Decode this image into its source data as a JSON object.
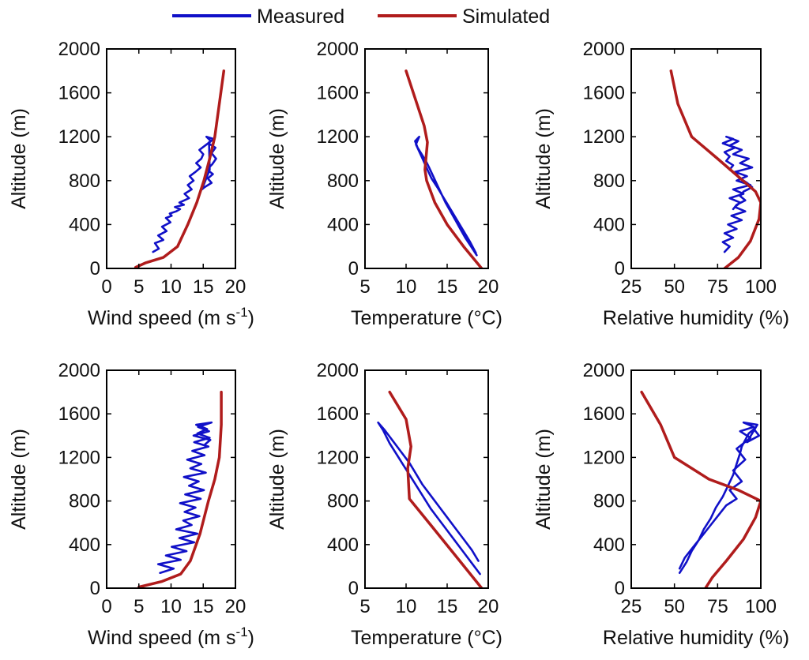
{
  "legend": [
    {
      "label": "Measured",
      "color": "#1010c8"
    },
    {
      "label": "Simulated",
      "color": "#b01c1c"
    }
  ],
  "colors": {
    "measured": "#1010c8",
    "simulated": "#b01c1c",
    "axis": "#000000"
  },
  "chart_data": [
    {
      "id": "p1",
      "type": "line",
      "xlabel": "Wind speed (m s",
      "xlabel_sup": "-1",
      "xlabel_tail": ")",
      "ylabel": "Altitude (m)",
      "xlim": [
        0,
        20
      ],
      "ylim": [
        0,
        2000
      ],
      "xticks": [
        0,
        5,
        10,
        15,
        20
      ],
      "xtick_labels": [
        "0",
        "5",
        "10",
        "15",
        "20"
      ],
      "yticks": [
        0,
        400,
        800,
        1200,
        1600,
        2000
      ],
      "ytick_labels": [
        "0",
        "400",
        "800",
        "1200",
        "1600",
        "2000"
      ],
      "series": [
        {
          "name": "Measured",
          "x": [
            7.2,
            8.1,
            7.5,
            8.8,
            8.0,
            9.3,
            8.6,
            9.9,
            9.2,
            10.1,
            9.8,
            10.8,
            11.4,
            10.6,
            12.0,
            11.3,
            12.8,
            12.1,
            13.2,
            12.6,
            13.5,
            12.9,
            13.8,
            14.6,
            13.9,
            14.7,
            15.0,
            14.4,
            15.3,
            16.2,
            15.5,
            16.6,
            15.8,
            16.9,
            16.3,
            17.0,
            16.4,
            15.6,
            16.5,
            15.7,
            16.3,
            15.2,
            14.8,
            16.0,
            15.9
          ],
          "y": [
            150,
            180,
            230,
            260,
            300,
            340,
            380,
            420,
            460,
            480,
            500,
            520,
            540,
            560,
            580,
            600,
            640,
            680,
            720,
            760,
            800,
            840,
            880,
            920,
            960,
            1000,
            1040,
            1080,
            1120,
            1160,
            1200,
            1180,
            1140,
            1100,
            1050,
            1000,
            950,
            900,
            860,
            820,
            780,
            740,
            720,
            900,
            1150
          ]
        },
        {
          "name": "Simulated",
          "x": [
            4.5,
            6.0,
            8.8,
            11.0,
            12.6,
            14.0,
            15.1,
            16.0,
            16.8,
            17.5,
            18.2
          ],
          "y": [
            10,
            50,
            100,
            200,
            400,
            600,
            800,
            1000,
            1200,
            1500,
            1800
          ]
        }
      ]
    },
    {
      "id": "p2",
      "type": "line",
      "xlabel": "Temperature (°C)",
      "ylabel": "Altitude (m)",
      "xlim": [
        5,
        20
      ],
      "ylim": [
        0,
        2000
      ],
      "xticks": [
        5,
        10,
        15,
        20
      ],
      "xtick_labels": [
        "5",
        "10",
        "15",
        "20"
      ],
      "yticks": [
        0,
        400,
        800,
        1200,
        1600,
        2000
      ],
      "ytick_labels": [
        "0",
        "400",
        "800",
        "1200",
        "1600",
        "2000"
      ],
      "series": [
        {
          "name": "Measured",
          "x": [
            18.6,
            17.9,
            17.2,
            16.6,
            16.0,
            15.4,
            14.8,
            14.3,
            13.8,
            13.3,
            12.8,
            12.4,
            11.9,
            11.4,
            11.1,
            11.6,
            11.2,
            12.0,
            12.6,
            13.1,
            13.8,
            14.6,
            15.4,
            16.2,
            17.0,
            17.8,
            18.5
          ],
          "y": [
            120,
            200,
            280,
            360,
            440,
            520,
            600,
            680,
            760,
            840,
            920,
            980,
            1040,
            1100,
            1160,
            1200,
            1130,
            1000,
            900,
            820,
            740,
            640,
            540,
            440,
            340,
            240,
            140
          ]
        },
        {
          "name": "Simulated",
          "x": [
            19.2,
            17.0,
            15.0,
            13.5,
            12.5,
            12.3,
            12.6,
            12.2,
            10.0
          ],
          "y": [
            0,
            200,
            400,
            600,
            800,
            900,
            1150,
            1300,
            1800
          ]
        }
      ]
    },
    {
      "id": "p3",
      "type": "line",
      "xlabel": "Relative humidity (%)",
      "ylabel": "Altitude (m)",
      "xlim": [
        25,
        100
      ],
      "ylim": [
        0,
        2000
      ],
      "xticks": [
        25,
        50,
        75,
        100
      ],
      "xtick_labels": [
        "25",
        "50",
        "75",
        "100"
      ],
      "yticks": [
        0,
        400,
        800,
        1200,
        1600,
        2000
      ],
      "ytick_labels": [
        "0",
        "400",
        "800",
        "1200",
        "1600",
        "2000"
      ],
      "series": [
        {
          "name": "Measured",
          "x": [
            79,
            82,
            78,
            84,
            79,
            86,
            81,
            89,
            83,
            91,
            85,
            88,
            82,
            90,
            84,
            94,
            86,
            92,
            85,
            95,
            88,
            93,
            84,
            89,
            82,
            87,
            80,
            84,
            78,
            85,
            79,
            82,
            80,
            84,
            82,
            86,
            88,
            92,
            95,
            90,
            88,
            91,
            86,
            84
          ],
          "y": [
            150,
            200,
            240,
            280,
            320,
            360,
            400,
            440,
            480,
            520,
            560,
            600,
            640,
            680,
            720,
            760,
            800,
            840,
            880,
            920,
            960,
            1000,
            1040,
            1080,
            1120,
            1160,
            1200,
            1180,
            1140,
            1100,
            1060,
            1020,
            980,
            940,
            900,
            860,
            820,
            780,
            740,
            700,
            660,
            620,
            580,
            540
          ]
        },
        {
          "name": "Simulated",
          "x": [
            79,
            87,
            94,
            99,
            100,
            97,
            75,
            60,
            52,
            48
          ],
          "y": [
            0,
            100,
            250,
            450,
            600,
            700,
            1000,
            1200,
            1500,
            1800
          ]
        }
      ]
    },
    {
      "id": "p4",
      "type": "line",
      "xlabel": "Wind speed (m s",
      "xlabel_sup": "-1",
      "xlabel_tail": ")",
      "ylabel": "Altitude (m)",
      "xlim": [
        0,
        20
      ],
      "ylim": [
        0,
        2000
      ],
      "xticks": [
        0,
        5,
        10,
        15,
        20
      ],
      "xtick_labels": [
        "0",
        "5",
        "10",
        "15",
        "20"
      ],
      "yticks": [
        0,
        400,
        800,
        1200,
        1600,
        2000
      ],
      "ytick_labels": [
        "0",
        "400",
        "800",
        "1200",
        "1600",
        "2000"
      ],
      "series": [
        {
          "name": "Measured",
          "x": [
            8.3,
            10.4,
            8.0,
            11.5,
            9.2,
            12.4,
            10.1,
            13.6,
            11.3,
            14.1,
            10.8,
            13.2,
            11.9,
            14.4,
            12.1,
            13.8,
            11.4,
            14.6,
            12.2,
            15.1,
            12.8,
            14.3,
            12.0,
            15.4,
            13.0,
            14.7,
            12.5,
            15.2,
            13.3,
            15.8,
            13.6,
            16.0,
            14.1,
            15.6,
            13.9,
            16.3,
            14.2,
            15.9,
            13.5,
            16.1,
            15.3
          ],
          "y": [
            140,
            180,
            220,
            260,
            300,
            340,
            380,
            420,
            460,
            500,
            540,
            580,
            620,
            660,
            700,
            740,
            780,
            820,
            860,
            900,
            940,
            980,
            1020,
            1060,
            1100,
            1140,
            1180,
            1220,
            1260,
            1300,
            1340,
            1380,
            1420,
            1460,
            1500,
            1520,
            1480,
            1440,
            1400,
            1360,
            1320
          ]
        },
        {
          "name": "Simulated",
          "x": [
            5.0,
            8.5,
            11.5,
            13.0,
            14.5,
            15.8,
            16.8,
            17.5,
            17.8,
            17.8
          ],
          "y": [
            10,
            60,
            130,
            250,
            500,
            800,
            1000,
            1200,
            1500,
            1800
          ]
        }
      ]
    },
    {
      "id": "p5",
      "type": "line",
      "xlabel": "Temperature (°C)",
      "ylabel": "Altitude (m)",
      "xlim": [
        5,
        20
      ],
      "ylim": [
        0,
        2000
      ],
      "xticks": [
        5,
        10,
        15,
        20
      ],
      "xtick_labels": [
        "5",
        "10",
        "15",
        "20"
      ],
      "yticks": [
        0,
        400,
        800,
        1200,
        1600,
        2000
      ],
      "ytick_labels": [
        "0",
        "400",
        "800",
        "1200",
        "1600",
        "2000"
      ],
      "series": [
        {
          "name": "Measured",
          "x": [
            19.0,
            18.0,
            17.0,
            16.0,
            15.0,
            14.0,
            13.0,
            12.0,
            11.0,
            10.0,
            9.0,
            8.0,
            7.2,
            6.6,
            7.4,
            8.4,
            9.4,
            10.4,
            11.2,
            12.0,
            13.0,
            14.0,
            15.0,
            16.0,
            17.0,
            18.0,
            18.8
          ],
          "y": [
            130,
            230,
            330,
            430,
            530,
            630,
            730,
            850,
            970,
            1090,
            1210,
            1330,
            1450,
            1520,
            1450,
            1350,
            1250,
            1150,
            1050,
            950,
            850,
            750,
            650,
            550,
            450,
            350,
            250
          ]
        },
        {
          "name": "Simulated",
          "x": [
            19.2,
            16.0,
            13.0,
            10.4,
            10.2,
            10.6,
            10.0,
            8.0
          ],
          "y": [
            0,
            300,
            580,
            820,
            1100,
            1300,
            1550,
            1800
          ]
        }
      ]
    },
    {
      "id": "p6",
      "type": "line",
      "xlabel": "Relative humidity (%)",
      "ylabel": "Altitude (m)",
      "xlim": [
        25,
        100
      ],
      "ylim": [
        0,
        2000
      ],
      "xticks": [
        25,
        50,
        75,
        100
      ],
      "xtick_labels": [
        "25",
        "50",
        "75",
        "100"
      ],
      "yticks": [
        0,
        400,
        800,
        1200,
        1600,
        2000
      ],
      "ytick_labels": [
        "0",
        "400",
        "800",
        "1200",
        "1600",
        "2000"
      ],
      "series": [
        {
          "name": "Measured",
          "x": [
            53,
            57,
            60,
            64,
            67,
            71,
            74,
            78,
            81,
            84,
            86,
            88,
            89,
            91,
            93,
            96,
            99,
            92,
            98,
            90,
            96,
            88,
            94,
            86,
            91,
            84,
            89,
            82,
            86,
            80,
            76,
            71,
            66,
            61,
            56,
            53
          ],
          "y": [
            140,
            240,
            340,
            440,
            540,
            640,
            740,
            840,
            940,
            1040,
            1140,
            1240,
            1300,
            1360,
            1420,
            1460,
            1400,
            1340,
            1500,
            1520,
            1480,
            1440,
            1380,
            1280,
            1180,
            1080,
            980,
            900,
            820,
            760,
            680,
            580,
            480,
            380,
            280,
            180
          ]
        },
        {
          "name": "Simulated",
          "x": [
            68,
            72,
            80,
            90,
            97,
            100,
            87,
            70,
            50,
            42,
            31
          ],
          "y": [
            0,
            100,
            250,
            450,
            650,
            800,
            900,
            1000,
            1200,
            1500,
            1800
          ]
        }
      ]
    }
  ]
}
